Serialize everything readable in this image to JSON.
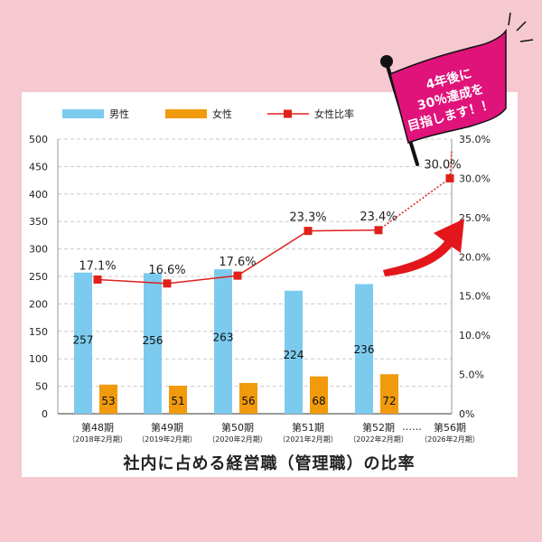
{
  "chart_data": {
    "type": "bar",
    "title": "社内に占める経営職（管理職）の比率",
    "categories": [
      {
        "label": "第48期",
        "sub": "（2018年2月期）"
      },
      {
        "label": "第49期",
        "sub": "（2019年2月期）"
      },
      {
        "label": "第50期",
        "sub": "（2020年2月期）"
      },
      {
        "label": "第51期",
        "sub": "（2021年2月期）"
      },
      {
        "label": "第52期",
        "sub": "（2022年2月期）"
      },
      {
        "label": "第56期",
        "sub": "（2026年2月期）"
      }
    ],
    "ellipsis": "……",
    "series": [
      {
        "name": "男性",
        "type": "bar",
        "axis": "left",
        "color": "#7ccbee",
        "values": [
          257,
          256,
          263,
          224,
          236,
          null
        ]
      },
      {
        "name": "女性",
        "type": "bar",
        "axis": "left",
        "color": "#f09a0c",
        "values": [
          53,
          51,
          56,
          68,
          72,
          null
        ]
      },
      {
        "name": "女性比率",
        "type": "line",
        "axis": "right",
        "color": "#e0201b",
        "values": [
          17.1,
          16.6,
          17.6,
          23.3,
          23.4,
          30.0
        ],
        "labels": [
          "17.1%",
          "16.6%",
          "17.6%",
          "23.3%",
          "23.4%",
          "30.0%"
        ]
      }
    ],
    "y_left": {
      "min": 0,
      "max": 500,
      "ticks": [
        0,
        50,
        100,
        150,
        200,
        250,
        300,
        350,
        400,
        450,
        500
      ]
    },
    "y_right": {
      "min": 0,
      "max": 35,
      "ticks": [
        "0%",
        "5.0%",
        "10.0%",
        "15.0%",
        "20.0%",
        "25.0%",
        "30.0%",
        "35.0%"
      ]
    },
    "grid": true,
    "legend_position": "top-left"
  },
  "flag": {
    "lines": [
      "4年後に",
      "30％達成を",
      "目指します！！"
    ],
    "color": "#e0137a"
  },
  "colors": {
    "background": "#f6c9d1",
    "arrow": "#e3161b"
  }
}
